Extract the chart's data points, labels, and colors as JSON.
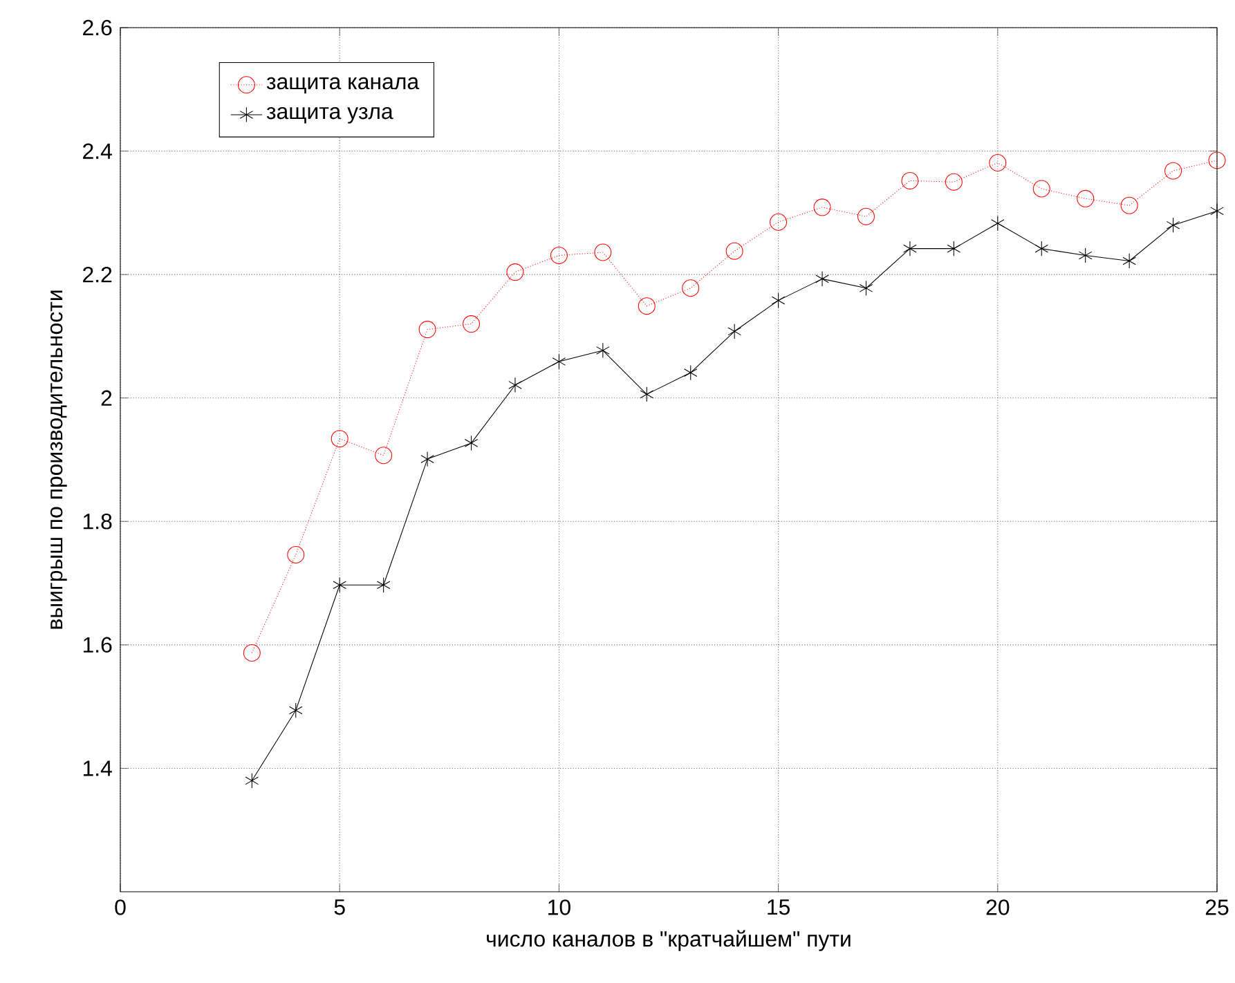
{
  "chart_data": {
    "type": "line",
    "xlabel": "число каналов в \"кратчайшем\" пути",
    "ylabel": "выигрыш по производительности",
    "x": [
      3,
      4,
      5,
      6,
      7,
      8,
      9,
      10,
      11,
      12,
      13,
      14,
      15,
      16,
      17,
      18,
      19,
      20,
      21,
      22,
      23,
      24,
      25
    ],
    "series": [
      {
        "name": "защита канала",
        "color": "#ff0000",
        "marker": "circle",
        "line_style": "dotted",
        "values": [
          1.587,
          1.746,
          1.934,
          1.907,
          2.111,
          2.12,
          2.204,
          2.231,
          2.236,
          2.149,
          2.178,
          2.238,
          2.285,
          2.309,
          2.294,
          2.352,
          2.35,
          2.381,
          2.339,
          2.323,
          2.312,
          2.368,
          2.385
        ]
      },
      {
        "name": "защита узла",
        "color": "#000000",
        "marker": "cross",
        "line_style": "solid",
        "values": [
          1.38,
          1.494,
          1.697,
          1.697,
          1.901,
          1.927,
          2.021,
          2.059,
          2.077,
          2.006,
          2.041,
          2.108,
          2.158,
          2.193,
          2.178,
          2.242,
          2.242,
          2.283,
          2.242,
          2.231,
          2.222,
          2.28,
          2.303
        ]
      }
    ],
    "xlim": [
      0,
      25
    ],
    "xticks": [
      0,
      5,
      10,
      15,
      20,
      25
    ],
    "ylim": [
      1.2,
      2.6
    ],
    "yticks": [
      1.4,
      1.6,
      1.8,
      2,
      2.2,
      2.4,
      2.6
    ],
    "grid": true,
    "legend": "top left"
  }
}
